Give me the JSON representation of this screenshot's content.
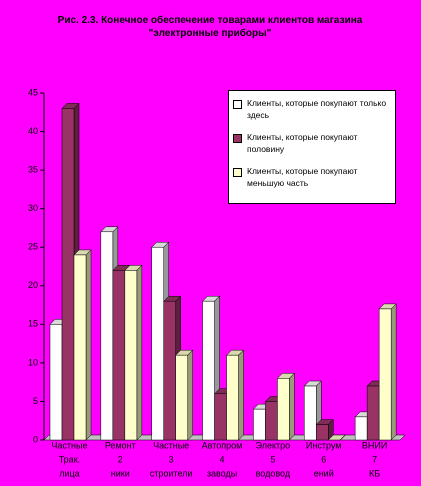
{
  "chart_data": {
    "type": "bar",
    "title": "Рис. 2.3. Конечное обеспечение товарами клиентов магазина \"электронные приборы\"",
    "categories": [
      [
        "Частные",
        "Трак.",
        "лица"
      ],
      [
        "Ремонт",
        "2",
        "ники"
      ],
      [
        "Частные",
        "3",
        "строители"
      ],
      [
        "Автопром",
        "4",
        "заводы"
      ],
      [
        "Электро",
        "5",
        "водовод"
      ],
      [
        "Инструм",
        "6",
        "ений"
      ],
      [
        "ВНИИ",
        "7",
        "КБ"
      ]
    ],
    "series": [
      {
        "name": "Клиенты, которые покупают только здесь",
        "color": "#ffffff",
        "values": [
          15,
          27,
          25,
          18,
          4,
          7,
          3
        ]
      },
      {
        "name": "Клиенты, которые покупают половину",
        "color": "#993366",
        "values": [
          43,
          22,
          18,
          6,
          5,
          2,
          7
        ]
      },
      {
        "name": "Клиенты, которые покупают меньшую часть",
        "color": "#ffffcc",
        "values": [
          24,
          22,
          11,
          11,
          8,
          0,
          17
        ]
      }
    ],
    "ylim": [
      0,
      45
    ],
    "yticks": [
      0,
      5,
      10,
      15,
      20,
      25,
      30,
      35,
      40,
      45
    ],
    "grid": false,
    "legend": "top-right",
    "background": "#ff00ff"
  }
}
